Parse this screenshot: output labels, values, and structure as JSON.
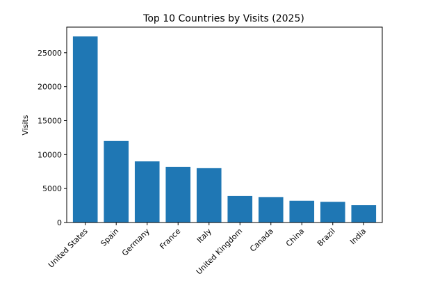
{
  "chart_data": {
    "type": "bar",
    "title": "Top 10 Countries by Visits (2025)",
    "xlabel": "",
    "ylabel": "Visits",
    "categories": [
      "United States",
      "Spain",
      "Germany",
      "France",
      "Italy",
      "United Kingdom",
      "Canada",
      "China",
      "Brazil",
      "India"
    ],
    "values": [
      27400,
      12000,
      9000,
      8200,
      8000,
      3900,
      3750,
      3200,
      3050,
      2550
    ],
    "ylim": [
      0,
      28770
    ],
    "yticks": [
      0,
      5000,
      10000,
      15000,
      20000,
      25000
    ],
    "grid": false,
    "bar_color": "#1f77b4"
  }
}
